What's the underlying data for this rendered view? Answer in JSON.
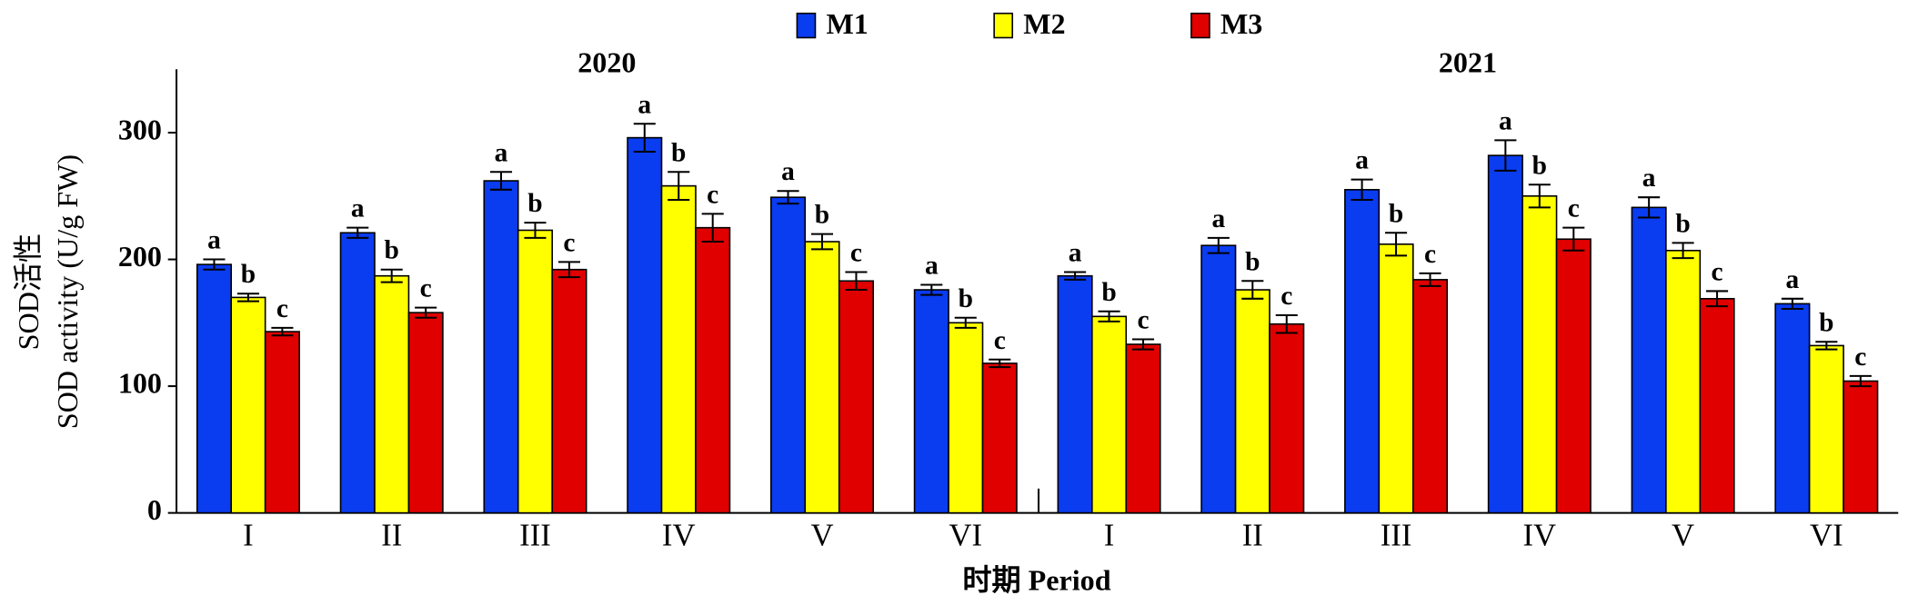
{
  "chart_data": {
    "type": "bar",
    "ylabel": [
      "SOD活性",
      "SOD activity (U/g FW)"
    ],
    "xlabel": "时期 Period",
    "groups": [
      {
        "label": "2020",
        "from": 0,
        "to": 5
      },
      {
        "label": "2021",
        "from": 6,
        "to": 11
      }
    ],
    "categories": [
      "I",
      "II",
      "III",
      "IV",
      "V",
      "VI",
      "I",
      "II",
      "III",
      "IV",
      "V",
      "VI"
    ],
    "series": [
      {
        "name": "M1",
        "color": "#0a3cf0",
        "values": [
          196,
          221,
          262,
          296,
          249,
          176,
          187,
          211,
          255,
          282,
          241,
          165
        ],
        "errors": [
          4,
          4,
          7,
          11,
          5,
          4,
          3,
          6,
          8,
          12,
          8,
          4
        ],
        "labels": [
          "a",
          "a",
          "a",
          "a",
          "a",
          "a",
          "a",
          "a",
          "a",
          "a",
          "a",
          "a"
        ]
      },
      {
        "name": "M2",
        "color": "#ffff00",
        "values": [
          170,
          187,
          223,
          258,
          214,
          150,
          155,
          176,
          212,
          250,
          207,
          132
        ],
        "errors": [
          3,
          5,
          6,
          11,
          6,
          4,
          4,
          7,
          9,
          9,
          6,
          3
        ],
        "labels": [
          "b",
          "b",
          "b",
          "b",
          "b",
          "b",
          "b",
          "b",
          "b",
          "b",
          "b",
          "b"
        ]
      },
      {
        "name": "M3",
        "color": "#e00000",
        "values": [
          143,
          158,
          192,
          225,
          183,
          118,
          133,
          149,
          184,
          216,
          169,
          104
        ],
        "errors": [
          3,
          4,
          6,
          11,
          7,
          3,
          4,
          7,
          5,
          9,
          6,
          4
        ],
        "labels": [
          "c",
          "c",
          "c",
          "c",
          "c",
          "c",
          "c",
          "c",
          "c",
          "c",
          "c",
          "c"
        ]
      }
    ],
    "ylim": [
      0,
      350
    ],
    "yticks": [
      0,
      100,
      200,
      300
    ]
  }
}
